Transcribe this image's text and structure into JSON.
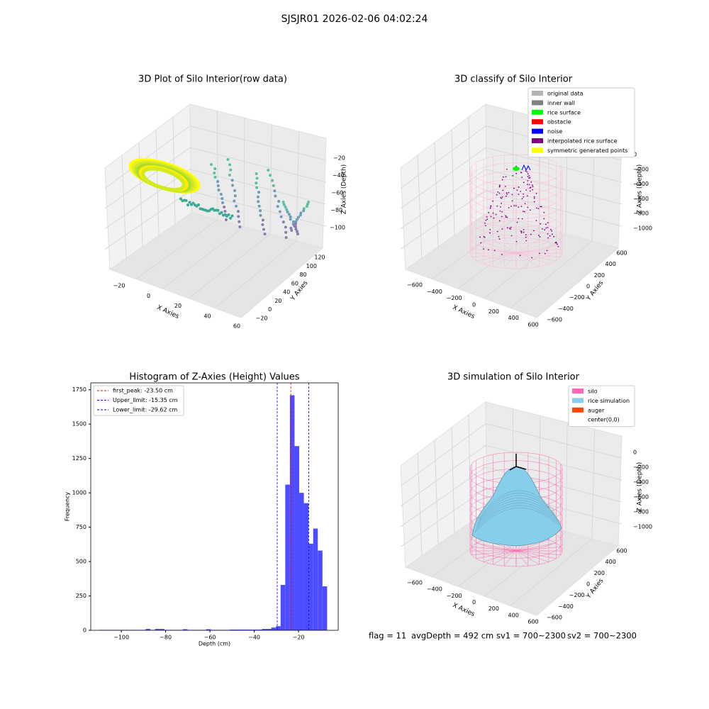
{
  "suptitle": "SJSJR01 2026-02-06 04:02:24",
  "footer": [
    "flag = 11",
    "avgDepth = 492 cm",
    "sv1 = 700~2300",
    "sv2 = 700~2300"
  ],
  "chart_data": [
    {
      "type": "scatter3d",
      "title": "3D Plot of Silo Interior(row data)",
      "xlabel": "X Axies",
      "ylabel": "Y Axies",
      "zlabel": "Z Axies (Depth)",
      "xticks": [
        {
          "value": -20,
          "label": "−20"
        },
        0,
        20,
        40,
        60
      ],
      "yticks": [
        {
          "value": -20,
          "label": "−20"
        },
        0,
        20,
        40,
        60,
        80,
        100,
        120
      ],
      "zticks": [
        {
          "value": -20,
          "label": "−20"
        },
        {
          "value": -40,
          "label": "−40"
        },
        {
          "value": -60,
          "label": "−60"
        },
        {
          "value": -80,
          "label": "−80"
        },
        {
          "value": -100,
          "label": "−100"
        }
      ]
    },
    {
      "type": "classify3d",
      "title": "3D classify of Silo Interior",
      "xlabel": "X Axies",
      "ylabel": "Y Axies",
      "zlabel": "Z Axies (Depth)",
      "xticks": [
        {
          "value": -600,
          "label": "−600"
        },
        {
          "value": -400,
          "label": "−400"
        },
        {
          "value": -200,
          "label": "−200"
        },
        0,
        200,
        400,
        600
      ],
      "yticks": [
        {
          "value": -600,
          "label": "−600"
        },
        {
          "value": -400,
          "label": "−400"
        },
        {
          "value": -200,
          "label": "−200"
        },
        0,
        200,
        400,
        600
      ],
      "zticks": [
        0,
        {
          "value": -200,
          "label": "−200"
        },
        {
          "value": -400,
          "label": "−400"
        },
        {
          "value": -600,
          "label": "−600"
        },
        {
          "value": -800,
          "label": "−800"
        },
        {
          "value": -1000,
          "label": "−1000"
        }
      ],
      "series": [
        {
          "name": "original data",
          "color": "#b3b3b3"
        },
        {
          "name": "inner wall",
          "color": "#808080"
        },
        {
          "name": "rice surface",
          "color": "#00ff00"
        },
        {
          "name": "obstacle",
          "color": "#ff0000"
        },
        {
          "name": "noise",
          "color": "#0000ff"
        },
        {
          "name": "interpolated rice surface",
          "color": "#800080"
        },
        {
          "name": "symmetric generated points",
          "color": "#ffff00"
        }
      ]
    },
    {
      "type": "histogram",
      "title": "Histogram of Z-Axies (Height) Values",
      "xlabel": "Depth (cm)",
      "ylabel": "Frequency",
      "color": "#4d4dff",
      "bins": [
        -110,
        -107.9,
        -105.8,
        -103.7,
        -101.6,
        -99.5,
        -97.4,
        -95.3,
        -93.2,
        -91.1,
        -89,
        -86.9,
        -84.8,
        -82.7,
        -80.6,
        -78.5,
        -76.4,
        -74.3,
        -72.2,
        -70.1,
        -68,
        -65.9,
        -63.8,
        -61.7,
        -59.6,
        -57.5,
        -55.4,
        -53.3,
        -51.2,
        -49.1,
        -47,
        -44.9,
        -42.8,
        -40.7,
        -38.6,
        -36.5,
        -34.4,
        -32.3,
        -30.2,
        -28.1,
        -26,
        -23.9,
        -21.8,
        -19.7,
        -17.6,
        -15.5,
        -13.4,
        -11.3,
        -9.2,
        -7.1
      ],
      "counts": [
        3,
        3,
        3,
        3,
        3,
        3,
        3,
        3,
        3,
        3,
        10,
        3,
        10,
        10,
        3,
        3,
        3,
        3,
        8,
        3,
        3,
        3,
        3,
        8,
        3,
        3,
        3,
        3,
        5,
        5,
        5,
        5,
        5,
        5,
        5,
        10,
        10,
        20,
        30,
        330,
        1060,
        1710,
        1340,
        1000,
        925,
        630,
        740,
        580,
        320
      ],
      "xlim": [
        -113.8,
        -2.1
      ],
      "ylim": [
        0,
        1800
      ],
      "xticks": [
        {
          "value": -100,
          "label": "−100"
        },
        {
          "value": -80,
          "label": "−80"
        },
        {
          "value": -60,
          "label": "−60"
        },
        {
          "value": -40,
          "label": "−40"
        },
        {
          "value": -20,
          "label": "−20"
        }
      ],
      "yticks": [
        0,
        250,
        500,
        750,
        1000,
        1250,
        1500,
        1750
      ],
      "lines": [
        {
          "name": "first_peak: -23.50 cm",
          "value": -23.5,
          "color": "#ff0000"
        },
        {
          "name": "Upper_limit: -15.35 cm",
          "value": -15.35,
          "color": "#0000ff"
        },
        {
          "name": "Lower_limit: -29.62 cm",
          "value": -29.62,
          "color": "#0000ff"
        }
      ],
      "legend": "upper left"
    },
    {
      "type": "surface3d",
      "title": "3D simulation of Silo Interior",
      "xlabel": "X Axies",
      "ylabel": "Y Axies",
      "zlabel": "Z Axies (Depth)",
      "xticks": [
        {
          "value": -600,
          "label": "−600"
        },
        {
          "value": -400,
          "label": "−400"
        },
        {
          "value": -200,
          "label": "−200"
        },
        0,
        200,
        400,
        600
      ],
      "yticks": [
        {
          "value": -600,
          "label": "−600"
        },
        {
          "value": -400,
          "label": "−400"
        },
        {
          "value": -200,
          "label": "−200"
        },
        0,
        200,
        400,
        600
      ],
      "zticks": [
        0,
        {
          "value": -200,
          "label": "−200"
        },
        {
          "value": -400,
          "label": "−400"
        },
        {
          "value": -600,
          "label": "−600"
        },
        {
          "value": -800,
          "label": "−800"
        },
        {
          "value": -1000,
          "label": "−1000"
        }
      ],
      "series": [
        {
          "name": "silo",
          "color": "#ff69b4"
        },
        {
          "name": "rice simulation",
          "color": "#87ceeb"
        },
        {
          "name": "auger",
          "color": "#ff4500"
        },
        {
          "name": "center(0,0)",
          "color": "#ffffff"
        }
      ]
    }
  ]
}
